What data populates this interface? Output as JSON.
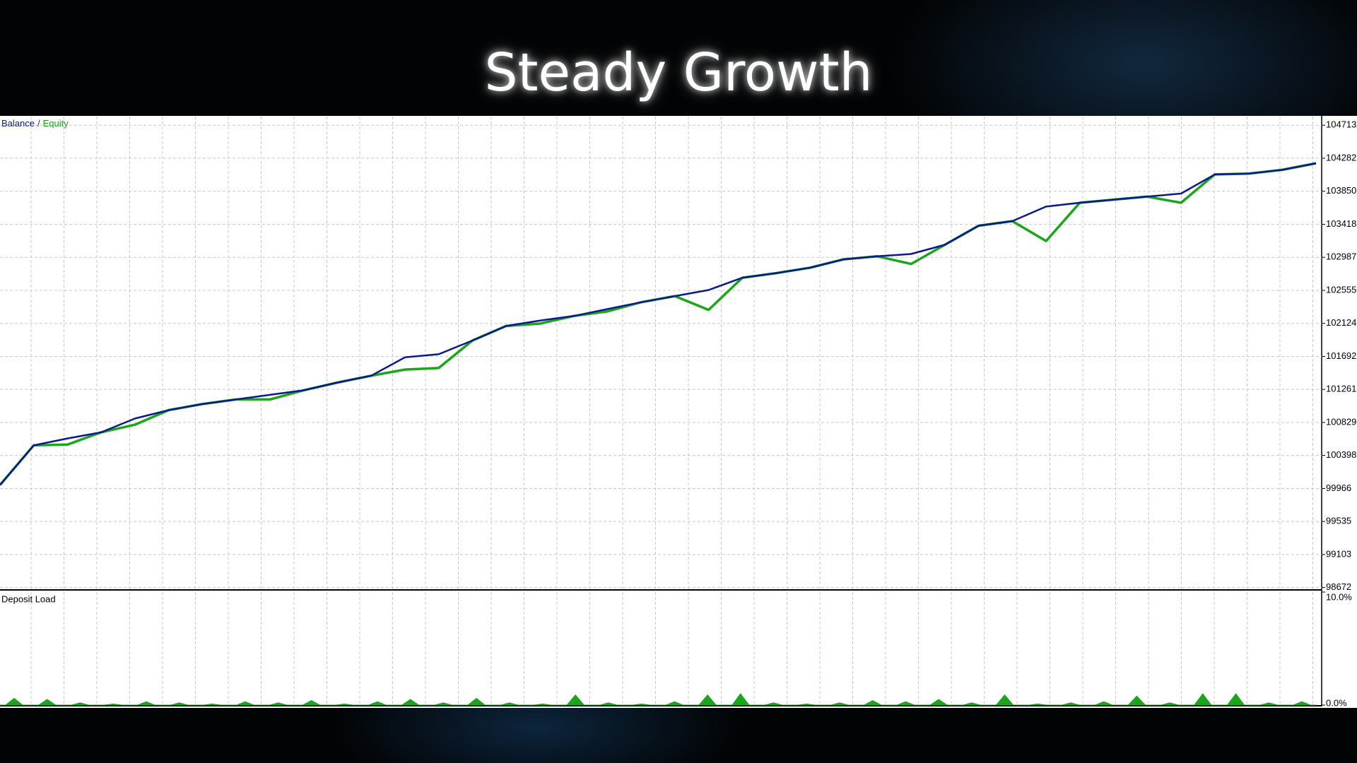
{
  "title": "Steady Growth",
  "chart_data": [
    {
      "type": "line",
      "legend_separator": "/",
      "series": [
        {
          "name": "Equity",
          "color": "#1aa51a",
          "values": [
            100012,
            100530,
            100540,
            100700,
            100800,
            100990,
            101070,
            101130,
            101130,
            101250,
            101350,
            101440,
            101520,
            101540,
            101900,
            102090,
            102120,
            102220,
            102280,
            102400,
            102480,
            102300,
            102720,
            102780,
            102850,
            102960,
            103000,
            102900,
            103150,
            103400,
            103460,
            103200,
            103700,
            103740,
            103780,
            103700,
            104070,
            104080,
            104130,
            104216
          ]
        },
        {
          "name": "Balance",
          "color": "#0a1a8c",
          "values": [
            100012,
            100530,
            100620,
            100700,
            100880,
            100990,
            101070,
            101130,
            101190,
            101250,
            101350,
            101440,
            101680,
            101720,
            101900,
            102090,
            102160,
            102220,
            102310,
            102400,
            102480,
            102560,
            102720,
            102780,
            102850,
            102960,
            103000,
            103030,
            103150,
            103400,
            103460,
            103650,
            103700,
            103740,
            103780,
            103820,
            104070,
            104080,
            104130,
            104216
          ]
        }
      ],
      "ylim": [
        98650,
        104826
      ],
      "yticks": [
        98672,
        99103,
        99535,
        99966,
        100398,
        100829,
        101261,
        101692,
        102124,
        102555,
        102987,
        103418,
        103850,
        104282,
        104713
      ],
      "grid": true
    },
    {
      "type": "area",
      "title": "Deposit Load",
      "series": [
        {
          "name": "Deposit Load",
          "color": "#1aa51a",
          "values": [
            0.6,
            0.5,
            0.2,
            0.1,
            0.3,
            0.2,
            0.1,
            0.3,
            0.2,
            0.4,
            0.1,
            0.3,
            0.5,
            0.2,
            0.6,
            0.2,
            0.1,
            0.9,
            0.2,
            0.1,
            0.3,
            0.9,
            1.0,
            0.2,
            0.1,
            0.2,
            0.4,
            0.3,
            0.5,
            0.2,
            0.9,
            0.1,
            0.2,
            0.3,
            0.8,
            0.2,
            1.0,
            1.0,
            0.2,
            0.3
          ]
        }
      ],
      "ylim": [
        0,
        10
      ],
      "yticks": [
        {
          "value": 0,
          "label": "0.0%"
        },
        {
          "value": 10,
          "label": "10.0%"
        }
      ]
    }
  ]
}
